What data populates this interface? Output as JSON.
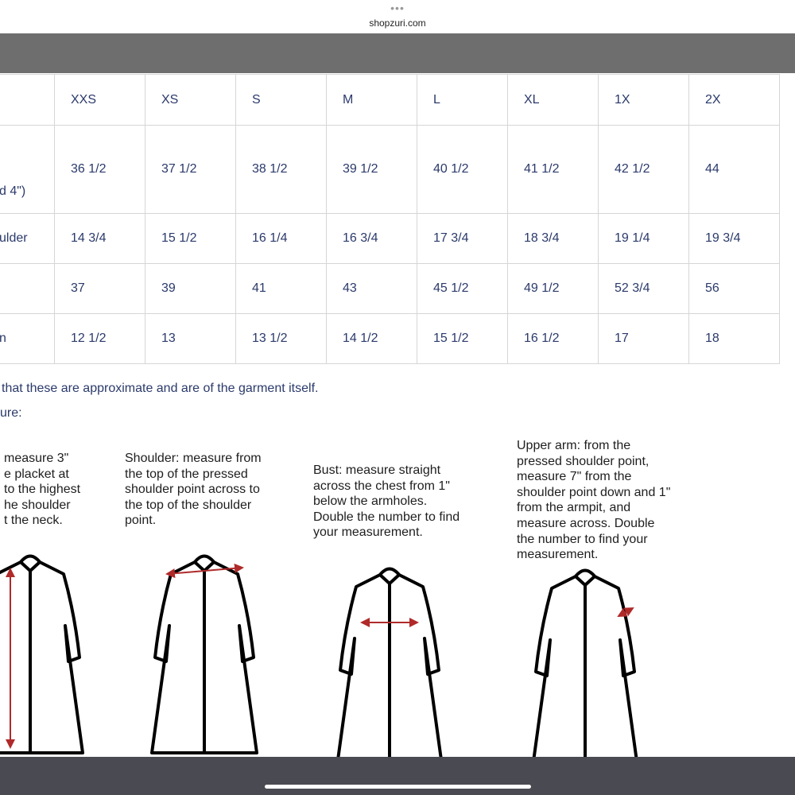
{
  "browser": {
    "url": "shopzuri.com"
  },
  "table": {
    "headers": [
      "XXS",
      "XS",
      "S",
      "M",
      "L",
      "XL",
      "1X",
      "2X"
    ],
    "rows": [
      {
        "label": "d 4\")",
        "values": [
          "36 1/2",
          "37 1/2",
          "38 1/2",
          "39 1/2",
          "40 1/2",
          "41 1/2",
          "42 1/2",
          "44"
        ]
      },
      {
        "label": "ulder",
        "values": [
          "14 3/4",
          "15 1/2",
          "16 1/4",
          "16 3/4",
          "17 3/4",
          "18 3/4",
          "19 1/4",
          "19 3/4"
        ]
      },
      {
        "values": [
          "37",
          "39",
          "41",
          "43",
          "45 1/2",
          "49 1/2",
          "52 3/4",
          "56"
        ]
      },
      {
        "label": "n",
        "values": [
          "12 1/2",
          "13",
          "13 1/2",
          "14 1/2",
          "15 1/2",
          "16 1/2",
          "17",
          "18"
        ]
      }
    ]
  },
  "notes": [
    "that these are approximate and are of the garment itself.",
    "ure:"
  ],
  "captions": [
    [
      "measure 3\"",
      "e placket at",
      "to the highest",
      "he shoulder",
      "t the neck."
    ],
    [
      "Shoulder: measure from",
      "the top of the pressed",
      "shoulder point across to",
      "the top of the shoulder",
      "point."
    ],
    [
      "Bust: measure straight",
      "across the chest from 1\"",
      "below the armholes.",
      "Double the number to find",
      "your measurement."
    ],
    [
      "Upper arm: from the",
      "pressed shoulder point,",
      "measure 7\" from the",
      "shoulder point down and 1\"",
      "from the armpit, and",
      "measure across. Double",
      "the number to find your",
      "measurement."
    ]
  ]
}
